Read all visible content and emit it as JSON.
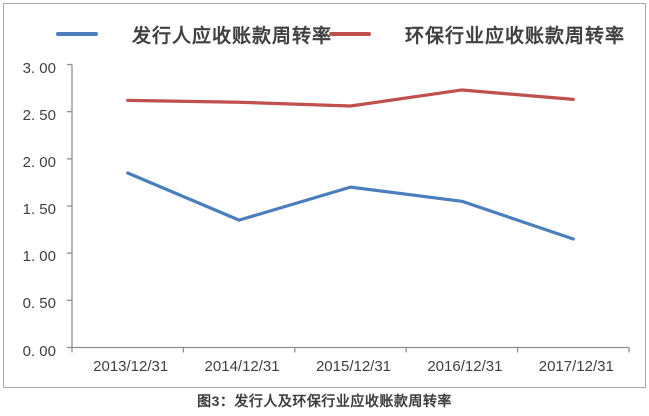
{
  "figure": {
    "caption": "图3：发行人及环保行业应收账款周转率"
  },
  "chart_data": {
    "type": "line",
    "title": "图3：发行人及环保行业应收账款周转率",
    "categories": [
      "2013/12/31",
      "2014/12/31",
      "2015/12/31",
      "2016/12/31",
      "2017/12/31"
    ],
    "series": [
      {
        "name": "发行人应收账款周转率",
        "color": "#4A7EBC",
        "values": [
          1.85,
          1.35,
          1.7,
          1.55,
          1.15
        ]
      },
      {
        "name": "环保行业应收账款周转率",
        "color": "#C0504D",
        "values": [
          2.62,
          2.6,
          2.56,
          2.73,
          2.63
        ]
      }
    ],
    "xlabel": "",
    "ylabel": "",
    "ylim": [
      0,
      3.0
    ],
    "y_tick_step": 0.5,
    "y_tick_labels": [
      "3. 00",
      "2. 50",
      "2. 00",
      "1. 50",
      "1. 00",
      "0. 50",
      "0. 00"
    ],
    "grid": false,
    "legend_position": "top",
    "axis_color": "#8f8f8f"
  }
}
